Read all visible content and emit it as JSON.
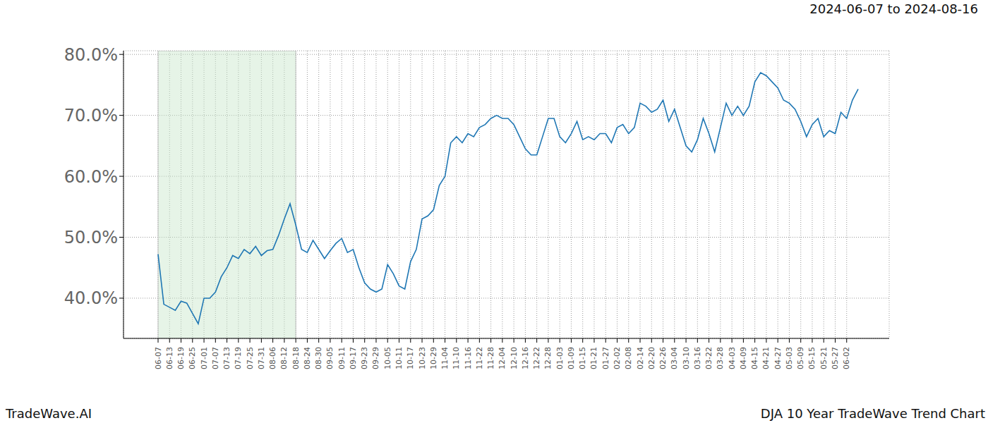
{
  "chart_data": {
    "type": "line",
    "title": "2024-06-07 to 2024-08-16",
    "source": "TradeWave.AI",
    "caption": "DJA 10 Year TradeWave Trend Chart",
    "categories": [
      "06-07",
      null,
      "06-13",
      null,
      "06-19",
      null,
      "06-25",
      null,
      "07-01",
      null,
      "07-07",
      null,
      "07-13",
      null,
      "07-19",
      null,
      "07-25",
      null,
      "07-31",
      null,
      "08-06",
      null,
      "08-12",
      null,
      "08-18",
      null,
      "08-24",
      null,
      "08-30",
      null,
      "09-05",
      null,
      "09-11",
      null,
      "09-17",
      null,
      "09-23",
      null,
      "09-29",
      null,
      "10-05",
      null,
      "10-11",
      null,
      "10-17",
      null,
      "10-23",
      null,
      "10-29",
      null,
      "11-04",
      null,
      "11-10",
      null,
      "11-16",
      null,
      "11-22",
      null,
      "11-28",
      null,
      "12-04",
      null,
      "12-10",
      null,
      "12-16",
      null,
      "12-22",
      null,
      "12-28",
      null,
      "01-03",
      null,
      "01-09",
      null,
      "01-15",
      null,
      "01-21",
      null,
      "01-27",
      null,
      "02-02",
      null,
      "02-08",
      null,
      "02-14",
      null,
      "02-20",
      null,
      "02-26",
      null,
      "03-04",
      null,
      "03-10",
      null,
      "03-16",
      null,
      "03-22",
      null,
      "03-28",
      null,
      "04-03",
      null,
      "04-09",
      null,
      "04-15",
      null,
      "04-21",
      null,
      "04-27",
      null,
      "05-03",
      null,
      "05-09",
      null,
      "05-15",
      null,
      "05-21",
      null,
      "05-27",
      null,
      "06-02",
      null,
      null
    ],
    "values": [
      47.2,
      39,
      38.5,
      38,
      39.5,
      39.2,
      37.5,
      35.8,
      40,
      40,
      41,
      43.5,
      45,
      47,
      46.5,
      48,
      47.3,
      48.5,
      47,
      47.8,
      48,
      50.3,
      53,
      55.5,
      52,
      48,
      47.5,
      49.5,
      48,
      46.5,
      47.8,
      49,
      49.8,
      47.5,
      48,
      45,
      42.5,
      41.5,
      41,
      41.5,
      45.5,
      44,
      42,
      41.5,
      46,
      48,
      53,
      53.5,
      54.5,
      58.5,
      60,
      65.5,
      66.5,
      65.5,
      67,
      66.5,
      68,
      68.5,
      69.5,
      70,
      69.5,
      69.5,
      68.5,
      66.5,
      64.5,
      63.5,
      63.5,
      66.5,
      69.5,
      69.5,
      66.5,
      65.5,
      67,
      69,
      66,
      66.5,
      66,
      67,
      67,
      65.5,
      68,
      68.5,
      67,
      68,
      72,
      71.5,
      70.5,
      71,
      72.5,
      69,
      71,
      68,
      65,
      64,
      66,
      69.5,
      67,
      64,
      68,
      72,
      70,
      71.5,
      70,
      71.5,
      75.5,
      77,
      76.5,
      75.5,
      74.5,
      72.5,
      72,
      71,
      69,
      66.5,
      68.5,
      69.5,
      66.5,
      67.5,
      67,
      70.5,
      69.5,
      72.5,
      74.3
    ],
    "highlight": [
      "06-07",
      "08-18"
    ],
    "color": "#1f77b4",
    "ylim": [
      33.4,
      80.6
    ],
    "yticks": [
      {
        "value": 40,
        "label": "40.0%"
      },
      {
        "value": 50,
        "label": "50.0%"
      },
      {
        "value": 60,
        "label": "60.0%"
      },
      {
        "value": 70,
        "label": "70.0%"
      },
      {
        "value": 80,
        "label": "80.0%"
      }
    ],
    "grid": true
  }
}
